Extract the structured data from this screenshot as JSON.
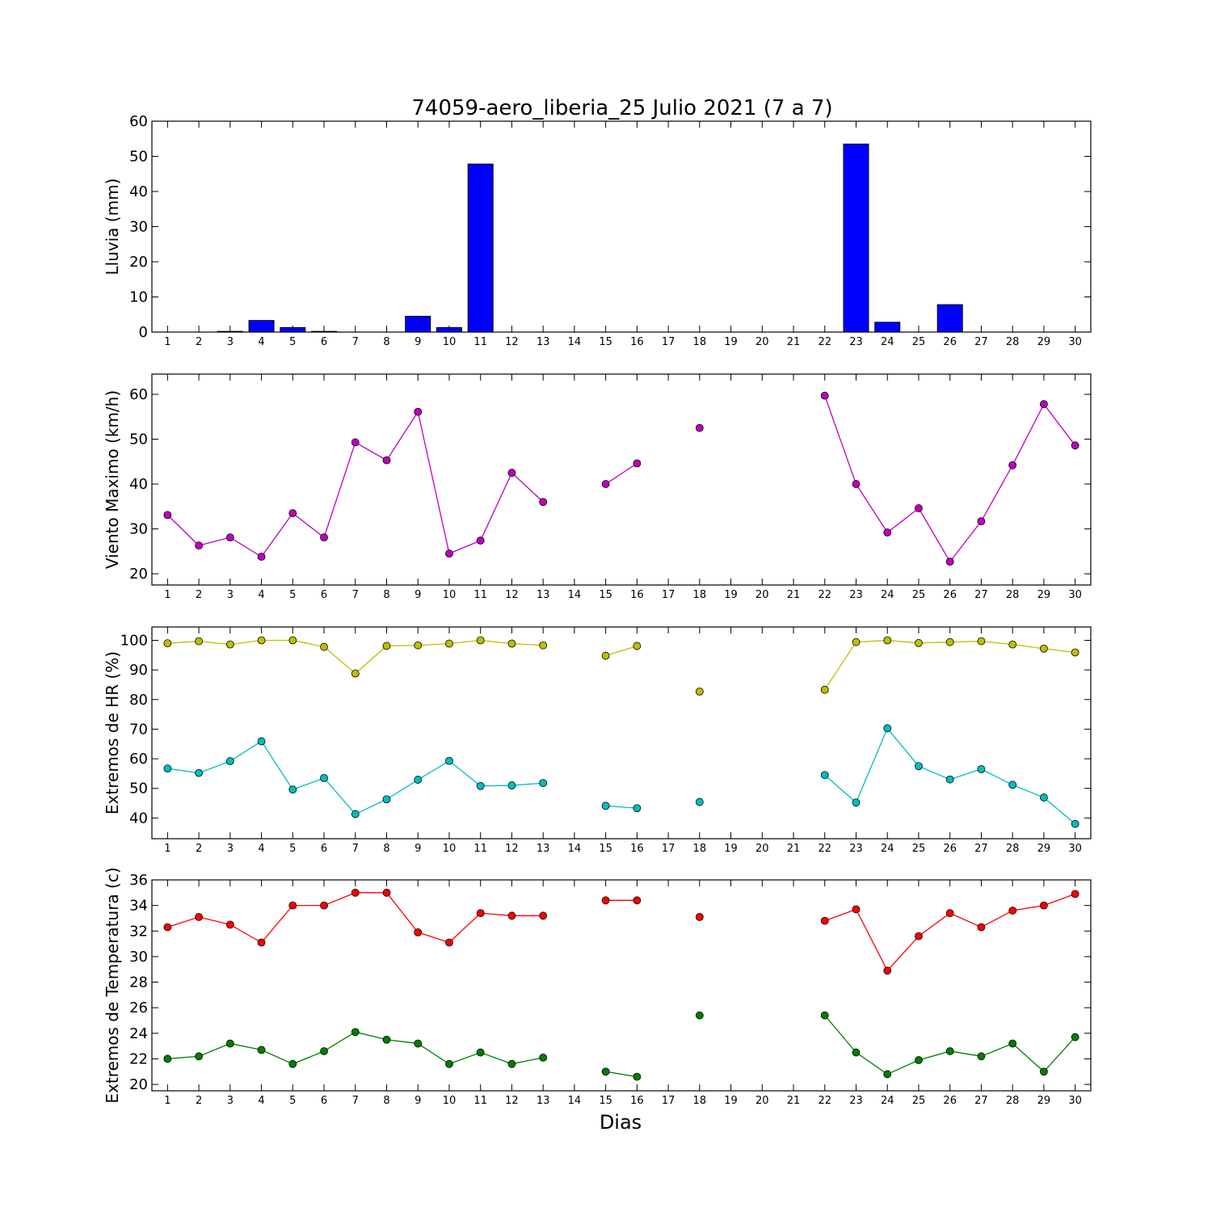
{
  "title": "74059-aero_liberia_25 Julio 2021  (7 a 7)",
  "xlabel": "Dias",
  "chart_data": [
    {
      "type": "bar",
      "ylabel": "Lluvia (mm)",
      "x": [
        1,
        2,
        3,
        4,
        5,
        6,
        7,
        8,
        9,
        10,
        11,
        12,
        13,
        14,
        15,
        16,
        17,
        18,
        19,
        20,
        21,
        22,
        23,
        24,
        25,
        26,
        27,
        28,
        29,
        30
      ],
      "ylim": [
        0,
        60
      ],
      "yticks": [
        0,
        10,
        20,
        30,
        40,
        50,
        60
      ],
      "series": [
        {
          "color": "#0000ff",
          "values": [
            0,
            0,
            0.2,
            3.3,
            1.3,
            0.2,
            0,
            0,
            4.5,
            1.3,
            47.8,
            0,
            0,
            0,
            0,
            0,
            0,
            0,
            0,
            0,
            0,
            0,
            53.5,
            2.8,
            0,
            7.8,
            0,
            0,
            0,
            0
          ]
        }
      ]
    },
    {
      "type": "line",
      "ylabel": "Viento Maximo (km/h)",
      "x": [
        1,
        2,
        3,
        4,
        5,
        6,
        7,
        8,
        9,
        10,
        11,
        12,
        13,
        14,
        15,
        16,
        17,
        18,
        19,
        20,
        21,
        22,
        23,
        24,
        25,
        26,
        27,
        28,
        29,
        30
      ],
      "ylim": [
        17.5,
        64.5
      ],
      "yticks": [
        20,
        30,
        40,
        50,
        60
      ],
      "series": [
        {
          "color": "#bf00bf",
          "values": [
            33.1,
            26.3,
            28.1,
            23.8,
            33.5,
            28.1,
            49.3,
            45.3,
            56.1,
            24.5,
            27.4,
            42.5,
            36.0,
            null,
            40.0,
            44.6,
            null,
            52.5,
            null,
            null,
            null,
            59.7,
            40.0,
            29.2,
            34.6,
            22.7,
            31.7,
            44.2,
            57.8,
            48.6
          ]
        }
      ]
    },
    {
      "type": "line",
      "ylabel": "Extremos de HR (%)",
      "x": [
        1,
        2,
        3,
        4,
        5,
        6,
        7,
        8,
        9,
        10,
        11,
        12,
        13,
        14,
        15,
        16,
        17,
        18,
        19,
        20,
        21,
        22,
        23,
        24,
        25,
        26,
        27,
        28,
        29,
        30
      ],
      "ylim": [
        33,
        104.5
      ],
      "yticks": [
        40,
        50,
        60,
        70,
        80,
        90,
        100
      ],
      "series": [
        {
          "color": "#bfbf00",
          "values": [
            99,
            99.7,
            98.6,
            100,
            100,
            97.8,
            88.8,
            98.1,
            98.3,
            98.9,
            100,
            98.9,
            98.3,
            null,
            94.8,
            98.1,
            null,
            82.7,
            null,
            null,
            null,
            83.3,
            99.4,
            100,
            99.1,
            99.4,
            99.7,
            98.6,
            97.2,
            95.9
          ]
        },
        {
          "color": "#00bfbf",
          "values": [
            56.7,
            55.2,
            59.2,
            65.9,
            49.6,
            53.5,
            41.3,
            46.3,
            52.9,
            59.3,
            50.8,
            51.0,
            51.8,
            null,
            44.1,
            43.3,
            null,
            45.4,
            null,
            null,
            null,
            54.5,
            45.2,
            70.3,
            57.5,
            53.0,
            56.5,
            51.2,
            46.9,
            38.0
          ]
        }
      ]
    },
    {
      "type": "line",
      "ylabel": "Extremos de Temperatura (c)",
      "x": [
        1,
        2,
        3,
        4,
        5,
        6,
        7,
        8,
        9,
        10,
        11,
        12,
        13,
        14,
        15,
        16,
        17,
        18,
        19,
        20,
        21,
        22,
        23,
        24,
        25,
        26,
        27,
        28,
        29,
        30
      ],
      "ylim": [
        19.5,
        36
      ],
      "yticks": [
        20,
        22,
        24,
        26,
        28,
        30,
        32,
        34,
        36
      ],
      "series": [
        {
          "color": "#ff0000",
          "values": [
            32.3,
            33.1,
            32.5,
            31.1,
            34.0,
            34.0,
            35.0,
            35.0,
            31.9,
            31.1,
            33.4,
            33.2,
            33.2,
            null,
            34.4,
            34.4,
            null,
            33.1,
            null,
            null,
            null,
            32.8,
            33.7,
            28.9,
            31.6,
            33.4,
            32.3,
            33.6,
            34.0,
            34.9
          ]
        },
        {
          "color": "#007f00",
          "values": [
            22.0,
            22.2,
            23.2,
            22.7,
            21.6,
            22.6,
            24.1,
            23.5,
            23.2,
            21.6,
            22.5,
            21.6,
            22.1,
            null,
            21.0,
            20.6,
            null,
            25.4,
            null,
            null,
            null,
            25.4,
            22.5,
            20.8,
            21.9,
            22.6,
            22.2,
            23.2,
            21.0,
            23.7
          ]
        }
      ]
    }
  ]
}
